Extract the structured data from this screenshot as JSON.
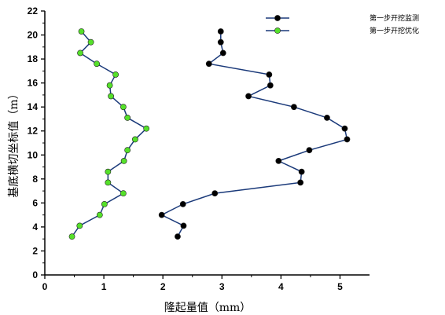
{
  "chart_data": {
    "type": "line",
    "xlabel": "隆起量值（mm）",
    "ylabel": "基底横切坐标值（m）",
    "xlim": [
      0,
      5.5
    ],
    "ylim": [
      0,
      22
    ],
    "xticks": [
      "0",
      "1",
      "2",
      "3",
      "4",
      "5"
    ],
    "yticks": [
      "0",
      "2",
      "4",
      "6",
      "8",
      "10",
      "12",
      "14",
      "16",
      "18",
      "20",
      "22"
    ],
    "grid": false,
    "legend": "top-right",
    "series": [
      {
        "name": "第一步开挖监测",
        "color": "#1b3a7a",
        "marker_color": "#000000",
        "points": [
          [
            2.98,
            20.3
          ],
          [
            2.98,
            19.4
          ],
          [
            3.02,
            18.5
          ],
          [
            2.78,
            17.6
          ],
          [
            3.8,
            16.7
          ],
          [
            3.82,
            15.8
          ],
          [
            3.45,
            14.9
          ],
          [
            4.22,
            14.0
          ],
          [
            4.78,
            13.1
          ],
          [
            5.08,
            12.2
          ],
          [
            5.12,
            11.3
          ],
          [
            4.48,
            10.4
          ],
          [
            3.96,
            9.5
          ],
          [
            4.35,
            8.6
          ],
          [
            4.33,
            7.7
          ],
          [
            2.88,
            6.8
          ],
          [
            2.34,
            5.9
          ],
          [
            1.98,
            5.0
          ],
          [
            2.35,
            4.1
          ],
          [
            2.25,
            3.2
          ]
        ]
      },
      {
        "name": "第一步开挖优化",
        "color": "#1b3a7a",
        "marker_color": "#55e02a",
        "points": [
          [
            0.62,
            20.3
          ],
          [
            0.78,
            19.4
          ],
          [
            0.6,
            18.5
          ],
          [
            0.88,
            17.6
          ],
          [
            1.2,
            16.7
          ],
          [
            1.1,
            15.8
          ],
          [
            1.12,
            14.9
          ],
          [
            1.33,
            14.0
          ],
          [
            1.4,
            13.1
          ],
          [
            1.72,
            12.2
          ],
          [
            1.53,
            11.3
          ],
          [
            1.4,
            10.4
          ],
          [
            1.34,
            9.5
          ],
          [
            1.07,
            8.6
          ],
          [
            1.07,
            7.7
          ],
          [
            1.33,
            6.8
          ],
          [
            1.01,
            5.9
          ],
          [
            0.93,
            5.0
          ],
          [
            0.59,
            4.1
          ],
          [
            0.46,
            3.2
          ]
        ]
      }
    ]
  }
}
